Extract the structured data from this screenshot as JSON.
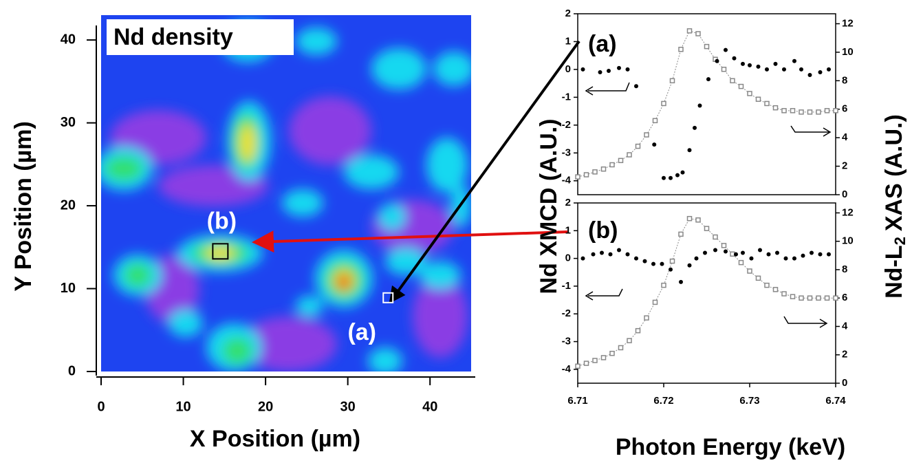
{
  "chart_data": [
    {
      "type": "heatmap",
      "title": "Nd density",
      "xlabel": "X Position (µm)",
      "ylabel": "Y Position (µm)",
      "xlim": [
        0,
        45
      ],
      "ylim": [
        0,
        43
      ],
      "xticks": [
        0,
        10,
        20,
        30,
        40
      ],
      "yticks": [
        0,
        10,
        20,
        30,
        40
      ],
      "annotations": [
        {
          "text": "(a)",
          "x": 34.9,
          "y": 8.9
        },
        {
          "text": "(b)",
          "x": 14.5,
          "y": 14.5
        }
      ]
    },
    {
      "type": "scatter",
      "panel_label": "(a)",
      "ylabel": "Nd XMCD (A.U.)",
      "y2label": "Nd-L",
      "y2label_sub": "2",
      "y2label_tail": "XAS  (A.U.)",
      "xlim": [
        6.71,
        6.74
      ],
      "ylim": [
        -4.5,
        2
      ],
      "yticks": [
        2,
        1,
        0,
        -1,
        -2,
        -3,
        -4
      ],
      "y2lim": [
        0,
        12.7
      ],
      "y2ticks": [
        0,
        2,
        4,
        6,
        8,
        10,
        12
      ],
      "series": [
        {
          "color": "#888888",
          "marker": "square",
          "axis": "y2",
          "x": [
            6.71,
            6.711,
            6.712,
            6.713,
            6.714,
            6.715,
            6.716,
            6.717,
            6.718,
            6.719,
            6.72,
            6.721,
            6.722,
            6.723,
            6.724,
            6.725,
            6.726,
            6.727,
            6.728,
            6.729,
            6.73,
            6.731,
            6.732,
            6.733,
            6.734,
            6.735,
            6.736,
            6.737,
            6.738,
            6.739,
            6.74
          ],
          "values": [
            1.25,
            1.4,
            1.6,
            1.8,
            2.1,
            2.4,
            2.8,
            3.4,
            4.2,
            5.2,
            6.4,
            8.0,
            10.2,
            11.5,
            11.3,
            10.4,
            9.5,
            8.8,
            8.0,
            7.6,
            7.1,
            6.7,
            6.4,
            6.1,
            5.9,
            5.9,
            5.8,
            5.8,
            5.8,
            5.9,
            5.9
          ]
        },
        {
          "color": "#000000",
          "marker": "dot",
          "x": [
            6.7106,
            6.7126,
            6.7136,
            6.7148,
            6.7158,
            6.7168,
            6.7189,
            6.72,
            6.7208,
            6.7216,
            6.7222,
            6.723,
            6.7236,
            6.7242,
            6.7252,
            6.7262,
            6.7272,
            6.7282,
            6.7292,
            6.73,
            6.731,
            6.732,
            6.733,
            6.734,
            6.7352,
            6.736,
            6.737,
            6.7382,
            6.7392
          ],
          "values": [
            0.0,
            -0.1,
            -0.05,
            0.05,
            0.0,
            -0.6,
            -2.7,
            -3.9,
            -3.9,
            -3.8,
            -3.7,
            -2.9,
            -2.1,
            -1.3,
            -0.35,
            0.3,
            0.7,
            0.4,
            0.2,
            0.15,
            0.1,
            0.0,
            0.2,
            0.0,
            0.3,
            0.0,
            -0.2,
            -0.1,
            0.0
          ]
        }
      ]
    },
    {
      "type": "scatter",
      "panel_label": "(b)",
      "xlabel": "Photon Energy (keV)",
      "xlim": [
        6.71,
        6.74
      ],
      "xticks": [
        6.71,
        6.72,
        6.73,
        6.74
      ],
      "ylim": [
        -4.5,
        2
      ],
      "yticks": [
        2,
        1,
        0,
        -1,
        -2,
        -3,
        -4
      ],
      "y2lim": [
        0,
        12.7
      ],
      "y2ticks": [
        0,
        2,
        4,
        6,
        8,
        10,
        12
      ],
      "series": [
        {
          "color": "#888888",
          "marker": "square",
          "axis": "y2",
          "x": [
            6.71,
            6.711,
            6.712,
            6.713,
            6.714,
            6.715,
            6.716,
            6.717,
            6.718,
            6.719,
            6.72,
            6.721,
            6.722,
            6.723,
            6.724,
            6.725,
            6.726,
            6.727,
            6.728,
            6.729,
            6.73,
            6.731,
            6.732,
            6.733,
            6.734,
            6.735,
            6.736,
            6.737,
            6.738,
            6.739,
            6.74
          ],
          "values": [
            1.2,
            1.4,
            1.6,
            1.8,
            2.1,
            2.5,
            3.0,
            3.7,
            4.6,
            5.7,
            6.9,
            8.6,
            10.5,
            11.6,
            11.5,
            10.9,
            10.3,
            9.7,
            9.1,
            8.5,
            7.9,
            7.4,
            6.9,
            6.6,
            6.3,
            6.1,
            6.0,
            6.0,
            6.0,
            6.0,
            6.0
          ]
        },
        {
          "color": "#000000",
          "marker": "dot",
          "x": [
            6.7106,
            6.7118,
            6.7128,
            6.7138,
            6.7148,
            6.7158,
            6.7168,
            6.7178,
            6.7188,
            6.7198,
            6.7208,
            6.722,
            6.723,
            6.7238,
            6.7248,
            6.726,
            6.7272,
            6.7284,
            6.7292,
            6.7302,
            6.7312,
            6.7322,
            6.7332,
            6.7342,
            6.7352,
            6.7362,
            6.7372,
            6.7382,
            6.7392
          ],
          "values": [
            0.0,
            0.15,
            0.2,
            0.15,
            0.3,
            0.15,
            0.0,
            -0.1,
            -0.2,
            -0.2,
            -0.4,
            -0.85,
            -0.25,
            0.0,
            0.2,
            0.3,
            0.25,
            0.15,
            0.2,
            0.0,
            0.3,
            0.15,
            0.2,
            0.0,
            0.0,
            0.1,
            0.2,
            0.15,
            0.15
          ]
        }
      ]
    }
  ]
}
